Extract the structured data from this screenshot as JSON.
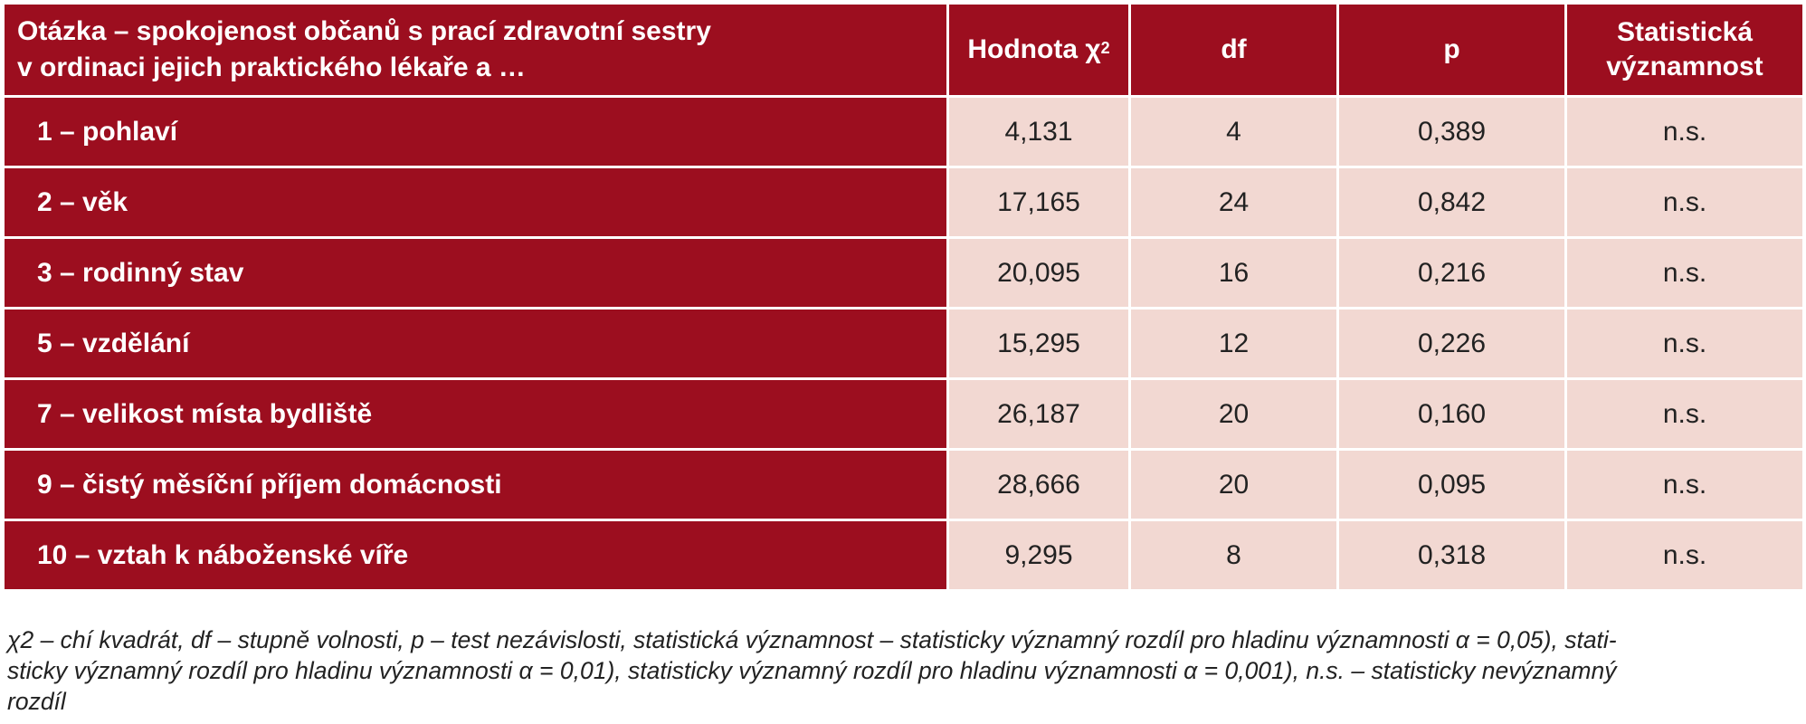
{
  "header": {
    "question_line1": "Otázka – spokojenost občanů s prací zdravotní sestry",
    "question_line2": "v ordinaci jejich praktického lékaře a …",
    "hodnota": "Hodnota χ",
    "hodnota_sup": "2",
    "df": "df",
    "p": "p",
    "sig_line1": "Statistická",
    "sig_line2": "významnost"
  },
  "rows": [
    {
      "label": "1 – pohlaví",
      "chi": "4,131",
      "df": "4",
      "p": "0,389",
      "sig": "n.s."
    },
    {
      "label": "2 – věk",
      "chi": "17,165",
      "df": "24",
      "p": "0,842",
      "sig": "n.s."
    },
    {
      "label": "3 – rodinný stav",
      "chi": "20,095",
      "df": "16",
      "p": "0,216",
      "sig": "n.s."
    },
    {
      "label": "5 – vzdělání",
      "chi": "15,295",
      "df": "12",
      "p": "0,226",
      "sig": "n.s."
    },
    {
      "label": "7 – velikost místa bydliště",
      "chi": "26,187",
      "df": "20",
      "p": "0,160",
      "sig": "n.s."
    },
    {
      "label": "9 – čistý měsíční příjem domácnosti",
      "chi": "28,666",
      "df": "20",
      "p": "0,095",
      "sig": "n.s."
    },
    {
      "label": "10 – vztah k náboženské víře",
      "chi": "9,295",
      "df": "8",
      "p": "0,318",
      "sig": "n.s."
    }
  ],
  "footnote": {
    "line1": "χ2 – chí kvadrát, df – stupně volnosti, p – test nezávislosti, statistická významnost – statisticky významný rozdíl pro hladinu významnosti α = 0,05), stati-",
    "line2": "sticky významný rozdíl pro hladinu významnosti α = 0,01), statisticky významný rozdíl pro hladinu významnosti α = 0,001), n.s. – statisticky nevýznamný",
    "line3": "rozdíl"
  },
  "colors": {
    "header_bg": "#9c0e1f",
    "cell_bg": "#f2d8d2"
  }
}
